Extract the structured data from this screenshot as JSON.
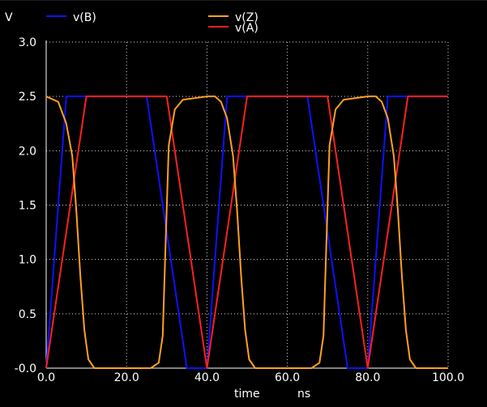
{
  "chart_data": {
    "type": "line",
    "ylabel": "V",
    "xlabel": "time",
    "xunit": "ns",
    "xlim": [
      0,
      100
    ],
    "ylim": [
      0,
      3
    ],
    "xticks": [
      0,
      20,
      40,
      60,
      80,
      100
    ],
    "xtick_labels": [
      "0.0",
      "20.0",
      "40.0",
      "60.0",
      "80.0",
      "100.0"
    ],
    "yticks": [
      0,
      0.5,
      1,
      1.5,
      2,
      2.5,
      3
    ],
    "ytick_labels": [
      "-0.0",
      "0.5",
      "1.0",
      "1.5",
      "2.0",
      "2.5",
      "3.0"
    ],
    "grid": true,
    "legend_placement": "top",
    "series": [
      {
        "name": "v(B)",
        "color": "#1010ff",
        "x": [
          0,
          5,
          25,
          35,
          40,
          45,
          65,
          75,
          80,
          85,
          100
        ],
        "y": [
          0,
          2.5,
          2.5,
          0,
          0,
          2.5,
          2.5,
          0,
          0,
          2.5,
          2.5
        ]
      },
      {
        "name": "v(A)",
        "color": "#ff2020",
        "x": [
          0,
          10,
          30,
          40,
          50,
          70,
          80,
          90,
          100
        ],
        "y": [
          0,
          2.5,
          2.5,
          0,
          2.5,
          2.5,
          0,
          2.5,
          2.5
        ]
      },
      {
        "name": "v(Z)",
        "color": "#ffa020",
        "x": [
          0,
          3,
          5,
          6.5,
          7.5,
          8.5,
          9.5,
          10.5,
          12,
          26,
          28,
          29,
          29.5,
          30.5,
          32,
          34,
          40,
          42,
          43.5,
          45,
          46.5,
          47.5,
          48.5,
          49.5,
          50.5,
          52,
          66,
          68,
          69,
          69.5,
          70.5,
          72,
          74,
          80,
          82,
          83.5,
          85,
          86.5,
          87.5,
          88.5,
          89.5,
          90.5,
          92,
          100
        ],
        "y": [
          2.5,
          2.45,
          2.25,
          1.95,
          1.45,
          0.85,
          0.35,
          0.08,
          0,
          0,
          0.05,
          0.3,
          0.9,
          2.05,
          2.38,
          2.47,
          2.5,
          2.5,
          2.45,
          2.3,
          1.95,
          1.45,
          0.85,
          0.35,
          0.08,
          0,
          0,
          0.05,
          0.3,
          0.9,
          2.05,
          2.38,
          2.47,
          2.5,
          2.5,
          2.45,
          2.3,
          1.95,
          1.45,
          0.85,
          0.35,
          0.08,
          0,
          0
        ]
      }
    ]
  }
}
